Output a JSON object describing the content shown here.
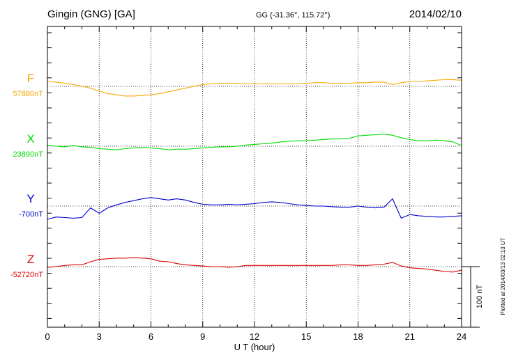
{
  "header": {
    "station": "Gingin (GNG)  [GA]",
    "coords": "GG (-31.36°, 115.72°)",
    "date": "2014/02/10"
  },
  "footer": {
    "plotted": "Plotted at 2014/03/13 02:13 UT"
  },
  "chart_data": {
    "type": "line",
    "xlabel": "U T (hour)",
    "ylabel": "",
    "xlim": [
      0,
      24
    ],
    "x_ticks": [
      "0",
      "3",
      "6",
      "9",
      "12",
      "15",
      "18",
      "21",
      "24"
    ],
    "grid": true,
    "scale_bar": {
      "label": "100 nT",
      "value_nT": 100
    },
    "x": [
      0,
      0.5,
      1,
      1.5,
      2,
      2.5,
      3,
      3.5,
      4,
      4.5,
      5,
      5.5,
      6,
      6.5,
      7,
      7.5,
      8,
      8.5,
      9,
      9.5,
      10,
      10.5,
      11,
      11.5,
      12,
      12.5,
      13,
      13.5,
      14,
      14.5,
      15,
      15.5,
      16,
      16.5,
      17,
      17.5,
      18,
      18.5,
      19,
      19.5,
      20,
      20.5,
      21,
      21.5,
      22,
      22.5,
      23,
      23.5,
      24
    ],
    "series": [
      {
        "name": "F",
        "baseline_label": "57880nT",
        "baseline_nT": 57880,
        "color": "#f5a800",
        "values": [
          57888,
          57887,
          57885,
          57883,
          57880,
          57877,
          57872,
          57868,
          57866,
          57864,
          57864,
          57865,
          57866,
          57868,
          57871,
          57874,
          57877,
          57880,
          57883,
          57884,
          57885,
          57885,
          57885,
          57884,
          57884,
          57884,
          57884,
          57884,
          57884,
          57884,
          57885,
          57886,
          57886,
          57885,
          57885,
          57885,
          57886,
          57886,
          57887,
          57887,
          57883,
          57886,
          57888,
          57888,
          57889,
          57890,
          57891,
          57891,
          57890
        ]
      },
      {
        "name": "X",
        "baseline_label": "23890nT",
        "baseline_nT": 23890,
        "color": "#00dd00",
        "values": [
          23892,
          23890,
          23889,
          23891,
          23889,
          23888,
          23886,
          23885,
          23884,
          23886,
          23887,
          23888,
          23887,
          23886,
          23884,
          23885,
          23885,
          23886,
          23887,
          23888,
          23889,
          23889,
          23890,
          23892,
          23893,
          23894,
          23895,
          23897,
          23898,
          23899,
          23899,
          23900,
          23901,
          23902,
          23902,
          23903,
          23907,
          23908,
          23909,
          23910,
          23908,
          23904,
          23901,
          23899,
          23899,
          23900,
          23899,
          23897,
          23891
        ]
      },
      {
        "name": "Y",
        "baseline_label": "-700nT",
        "baseline_nT": -700,
        "color": "#0000cc",
        "values": [
          -722,
          -718,
          -719,
          -720,
          -719,
          -703,
          -712,
          -703,
          -698,
          -694,
          -691,
          -688,
          -686,
          -688,
          -690,
          -688,
          -690,
          -694,
          -697,
          -698,
          -698,
          -697,
          -698,
          -697,
          -696,
          -694,
          -693,
          -694,
          -696,
          -698,
          -699,
          -700,
          -700,
          -701,
          -702,
          -702,
          -700,
          -702,
          -703,
          -702,
          -688,
          -720,
          -714,
          -716,
          -717,
          -718,
          -718,
          -717,
          -716
        ]
      },
      {
        "name": "Z",
        "baseline_label": "-52720nT",
        "baseline_nT": -52720,
        "color": "#dd0000",
        "values": [
          -52721,
          -52720,
          -52718,
          -52717,
          -52717,
          -52712,
          -52708,
          -52707,
          -52706,
          -52706,
          -52705,
          -52706,
          -52707,
          -52711,
          -52712,
          -52715,
          -52717,
          -52718,
          -52719,
          -52720,
          -52720,
          -52721,
          -52720,
          -52718,
          -52718,
          -52718,
          -52718,
          -52718,
          -52718,
          -52718,
          -52718,
          -52718,
          -52718,
          -52718,
          -52717,
          -52717,
          -52718,
          -52718,
          -52717,
          -52716,
          -52713,
          -52719,
          -52722,
          -52723,
          -52724,
          -52726,
          -52728,
          -52729,
          -52726
        ]
      }
    ]
  }
}
